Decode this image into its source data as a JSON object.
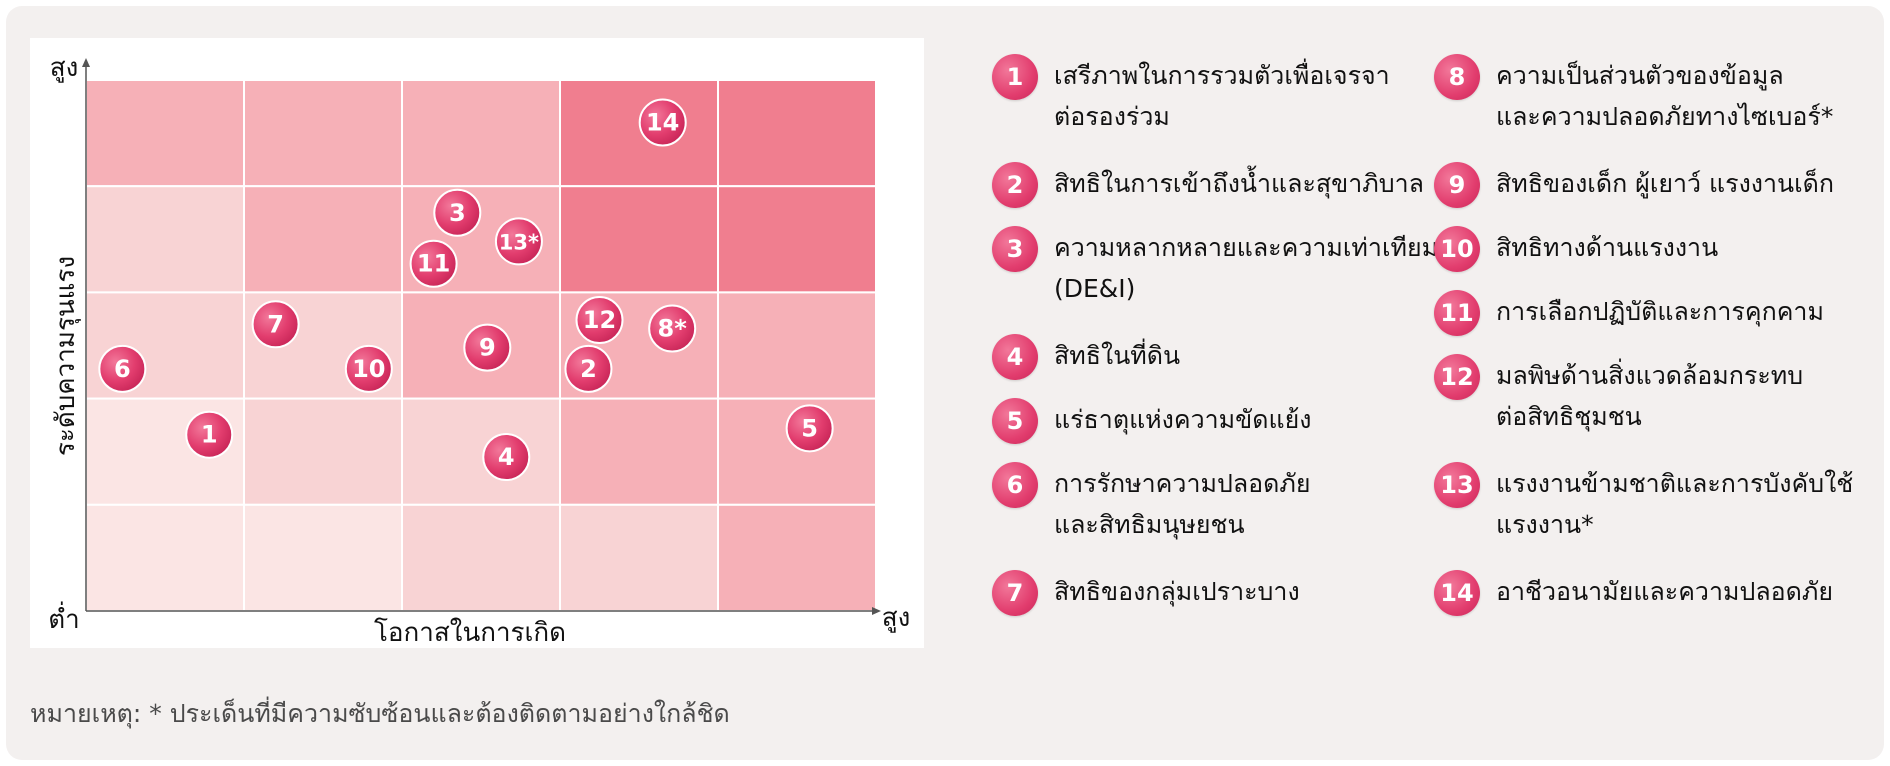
{
  "chart_data": {
    "type": "scatter",
    "title": "",
    "xlabel": "โอกาสในการเกิด",
    "ylabel": "ระดับความรุนแรง",
    "x_high_label": "สูง",
    "y_high_label": "สูง",
    "low_label": "ต่ำ",
    "xlim": [
      0,
      5
    ],
    "ylim": [
      0,
      5
    ],
    "grid": true,
    "heat_colors": [
      [
        "#f6b0b7",
        "#f6b0b7",
        "#f6b0b7",
        "#f07e8f",
        "#f07e8f"
      ],
      [
        "#f8d3d4",
        "#f6b0b7",
        "#f6b0b7",
        "#f07e8f",
        "#f07e8f"
      ],
      [
        "#f8d3d4",
        "#f8d3d4",
        "#f6b0b7",
        "#f6b0b7",
        "#f6b0b7"
      ],
      [
        "#fbe5e4",
        "#f8d3d4",
        "#f8d3d4",
        "#f6b0b7",
        "#f6b0b7"
      ],
      [
        "#fbe5e4",
        "#fbe5e4",
        "#f8d3d4",
        "#f8d3d4",
        "#f6b0b7"
      ]
    ],
    "points": [
      {
        "label": "1",
        "x": 0.78,
        "y": 1.66
      },
      {
        "label": "2",
        "x": 3.18,
        "y": 2.28
      },
      {
        "label": "3",
        "x": 2.35,
        "y": 3.75
      },
      {
        "label": "4",
        "x": 2.66,
        "y": 1.45
      },
      {
        "label": "5",
        "x": 4.58,
        "y": 1.72
      },
      {
        "label": "6",
        "x": 0.23,
        "y": 2.28
      },
      {
        "label": "7",
        "x": 1.2,
        "y": 2.7
      },
      {
        "label": "8*",
        "x": 3.71,
        "y": 2.66
      },
      {
        "label": "9",
        "x": 2.54,
        "y": 2.48
      },
      {
        "label": "10",
        "x": 1.79,
        "y": 2.28
      },
      {
        "label": "11",
        "x": 2.2,
        "y": 3.27
      },
      {
        "label": "12",
        "x": 3.25,
        "y": 2.74
      },
      {
        "label": "13*",
        "x": 2.74,
        "y": 3.48
      },
      {
        "label": "14",
        "x": 3.65,
        "y": 4.6
      }
    ]
  },
  "legend": [
    {
      "num": "1",
      "text": "เสรีภาพในการรวมตัวเพื่อเจรจา\nต่อรองร่วม"
    },
    {
      "num": "2",
      "text": "สิทธิในการเข้าถึงน้ำและสุขาภิบาล"
    },
    {
      "num": "3",
      "text": "ความหลากหลายและความเท่าเทียม\n(DE&I)"
    },
    {
      "num": "4",
      "text": "สิทธิในที่ดิน"
    },
    {
      "num": "5",
      "text": "แร่ธาตุแห่งความขัดแย้ง"
    },
    {
      "num": "6",
      "text": "การรักษาความปลอดภัย\nและสิทธิมนุษยชน"
    },
    {
      "num": "7",
      "text": "สิทธิของกลุ่มเปราะบาง"
    },
    {
      "num": "8",
      "text": "ความเป็นส่วนตัวของข้อมูล\nและความปลอดภัยทางไซเบอร์*"
    },
    {
      "num": "9",
      "text": "สิทธิของเด็ก ผู้เยาว์ แรงงานเด็ก"
    },
    {
      "num": "10",
      "text": "สิทธิทางด้านแรงงาน"
    },
    {
      "num": "11",
      "text": "การเลือกปฏิบัติและการคุกคาม"
    },
    {
      "num": "12",
      "text": "มลพิษด้านสิ่งแวดล้อมกระทบ\nต่อสิทธิชุมชน"
    },
    {
      "num": "13",
      "text": "แรงงานข้ามชาติและการบังคับใช้\nแรงงาน*"
    },
    {
      "num": "14",
      "text": "อาชีวอนามัยและความปลอดภัย"
    }
  ],
  "note": "หมายเหตุ: * ประเด็นที่มีความซับซ้อนและต้องติดตามอย่างใกล้ชิด",
  "colors": {
    "marker": "#e23d6e",
    "panel": "#f3f0ef"
  }
}
